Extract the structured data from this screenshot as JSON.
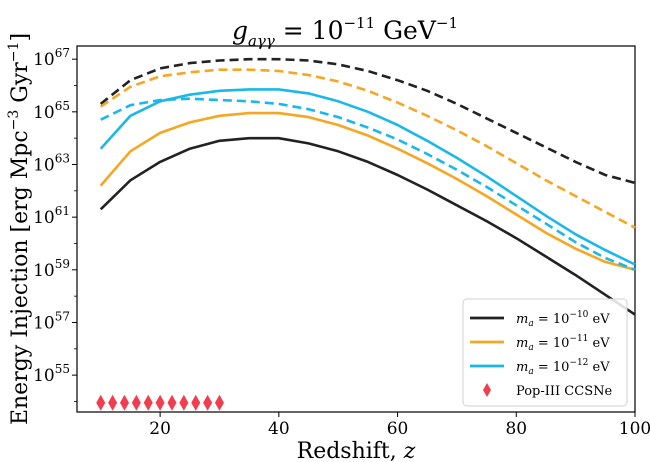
{
  "chart_data": {
    "type": "line",
    "title": "g_{aγγ} = 10^{−11} GeV^{−1}",
    "title_parts": {
      "symbol": "g",
      "subscript": "aγγ",
      "rest": " = 10",
      "exponent": "−11",
      "unit": " GeV",
      "unit_exponent": "−1"
    },
    "xlabel": "Redshift, z",
    "xlabel_parts": {
      "text": "Redshift, ",
      "var": "z"
    },
    "ylabel": "Energy Injection [erg Mpc^{−3} Gyr^{−1}]",
    "ylabel_parts": {
      "text": "Energy Injection [erg Mpc",
      "exp1": "−3",
      "mid": " Gyr",
      "exp2": "−1",
      "end": "]"
    },
    "xlim": [
      6,
      100
    ],
    "ylim_log10": [
      53.6,
      67.5
    ],
    "yscale": "log",
    "xticks": [
      20,
      40,
      60,
      80,
      100
    ],
    "xtick_labels": [
      "20",
      "40",
      "60",
      "80",
      "100"
    ],
    "yticks_log10": [
      55,
      57,
      59,
      61,
      63,
      65,
      67
    ],
    "ytick_exponents": [
      "55",
      "57",
      "59",
      "61",
      "63",
      "65",
      "67"
    ],
    "ytick_base": "10",
    "legend_position": "lower-right",
    "x": [
      10,
      15,
      20,
      25,
      30,
      35,
      40,
      45,
      50,
      55,
      60,
      65,
      70,
      75,
      80,
      85,
      90,
      95,
      100
    ],
    "series": [
      {
        "name": "m_a = 10^{−10} eV",
        "legend_exponent": "−10",
        "color": "#222222",
        "style": "solid",
        "log10_values": [
          61.3,
          62.4,
          63.1,
          63.6,
          63.9,
          64.0,
          64.0,
          63.8,
          63.5,
          63.1,
          62.6,
          62.05,
          61.45,
          60.85,
          60.2,
          59.5,
          58.8,
          58.05,
          57.3
        ]
      },
      {
        "name": "m_a = 10^{−10} eV (dashed)",
        "color": "#222222",
        "style": "dashed",
        "log10_values": [
          65.3,
          66.2,
          66.65,
          66.85,
          66.95,
          67.0,
          67.0,
          66.95,
          66.8,
          66.55,
          66.2,
          65.8,
          65.3,
          64.75,
          64.2,
          63.65,
          63.1,
          62.6,
          62.3
        ]
      },
      {
        "name": "m_a = 10^{−11} eV",
        "legend_exponent": "−11",
        "color": "#F5A623",
        "style": "solid",
        "log10_values": [
          62.2,
          63.5,
          64.2,
          64.6,
          64.85,
          64.95,
          64.95,
          64.8,
          64.5,
          64.1,
          63.6,
          63.05,
          62.45,
          61.8,
          61.1,
          60.4,
          59.8,
          59.3,
          59.0
        ]
      },
      {
        "name": "m_a = 10^{−11} eV (dashed)",
        "color": "#F5A623",
        "style": "dashed",
        "log10_values": [
          65.2,
          65.95,
          66.35,
          66.5,
          66.6,
          66.6,
          66.55,
          66.4,
          66.15,
          65.8,
          65.35,
          64.85,
          64.3,
          63.7,
          63.05,
          62.4,
          61.8,
          61.2,
          60.6
        ]
      },
      {
        "name": "m_a = 10^{−12} eV",
        "legend_exponent": "−12",
        "color": "#1AB8E8",
        "style": "solid",
        "log10_values": [
          63.6,
          64.85,
          65.4,
          65.65,
          65.8,
          65.85,
          65.85,
          65.7,
          65.4,
          65.0,
          64.5,
          63.9,
          63.25,
          62.55,
          61.8,
          61.05,
          60.35,
          59.75,
          59.2
        ]
      },
      {
        "name": "m_a = 10^{−12} eV (dashed)",
        "color": "#1AB8E8",
        "style": "dashed",
        "log10_values": [
          64.7,
          65.25,
          65.45,
          65.5,
          65.45,
          65.4,
          65.3,
          65.1,
          64.8,
          64.4,
          63.95,
          63.4,
          62.8,
          62.15,
          61.45,
          60.75,
          60.05,
          59.45,
          59.0
        ]
      }
    ],
    "markers": {
      "name": "Pop-III CCSNe",
      "color": "#F03E4E",
      "shape": "diamond",
      "x": [
        10,
        12,
        14,
        16,
        18,
        20,
        22,
        24,
        26,
        28,
        30
      ],
      "log10_values": [
        53.95,
        53.95,
        53.95,
        53.95,
        53.95,
        53.95,
        53.95,
        53.95,
        53.95,
        53.95,
        53.95
      ]
    },
    "legend": [
      {
        "pre": "m",
        "sub": "a",
        "mid": " = 10",
        "sup": "−10",
        "post": " eV",
        "color": "#222222",
        "kind": "line"
      },
      {
        "pre": "m",
        "sub": "a",
        "mid": " = 10",
        "sup": "−11",
        "post": " eV",
        "color": "#F5A623",
        "kind": "line"
      },
      {
        "pre": "m",
        "sub": "a",
        "mid": " = 10",
        "sup": "−12",
        "post": " eV",
        "color": "#1AB8E8",
        "kind": "line"
      },
      {
        "text": "Pop-III CCSNe",
        "color": "#F03E4E",
        "kind": "diamond"
      }
    ]
  }
}
